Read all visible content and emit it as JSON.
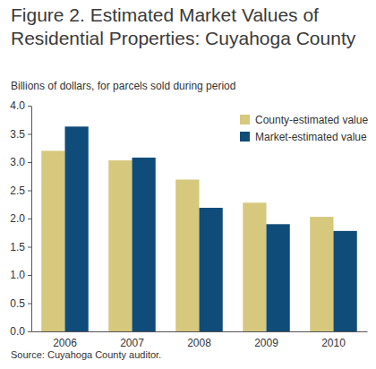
{
  "chart_data": {
    "type": "bar",
    "title": "Figure 2. Estimated Market Values of Residential Properties: Cuyahoga County",
    "ylabel": "Billions of dollars, for parcels sold during period",
    "source": "Source: Cuyahoga County auditor.",
    "categories": [
      "2006",
      "2007",
      "2008",
      "2009",
      "2010"
    ],
    "series": [
      {
        "name": "County-estimated value",
        "color": "#d6c87c",
        "values": [
          3.2,
          3.03,
          2.69,
          2.28,
          2.03
        ]
      },
      {
        "name": "Market-estimated value",
        "color": "#0f4c7a",
        "values": [
          3.63,
          3.08,
          2.19,
          1.9,
          1.78
        ]
      }
    ],
    "ylim": [
      0,
      4
    ],
    "yticks": [
      {
        "value": 0,
        "label": "0.0"
      },
      0.5,
      {
        "value": 1,
        "label": "1.0"
      },
      1.5,
      {
        "value": 2,
        "label": "2.0"
      },
      2.5,
      {
        "value": 3,
        "label": "3.0"
      },
      3.5,
      {
        "value": 4,
        "label": "4.0"
      }
    ],
    "grid": false,
    "legend": "upper right"
  }
}
